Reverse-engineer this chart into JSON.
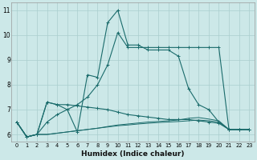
{
  "xlabel": "Humidex (Indice chaleur)",
  "xlim": [
    -0.5,
    23.5
  ],
  "ylim": [
    5.7,
    11.3
  ],
  "yticks": [
    6,
    7,
    8,
    9,
    10,
    11
  ],
  "xticks": [
    0,
    1,
    2,
    3,
    4,
    5,
    6,
    7,
    8,
    9,
    10,
    11,
    12,
    13,
    14,
    15,
    16,
    17,
    18,
    19,
    20,
    21,
    22,
    23
  ],
  "bg_color": "#cce8e8",
  "grid_color": "#aacece",
  "line_color": "#1a6b6b",
  "line1": [
    6.5,
    5.9,
    6.0,
    7.3,
    7.2,
    7.0,
    6.1,
    8.4,
    8.3,
    10.5,
    11.0,
    9.6,
    9.6,
    9.4,
    9.4,
    9.4,
    9.15,
    7.85,
    7.2,
    7.0,
    6.5,
    6.2,
    6.2,
    6.2
  ],
  "line2": [
    6.5,
    5.9,
    6.0,
    6.5,
    6.8,
    7.0,
    7.2,
    7.5,
    8.0,
    8.8,
    10.1,
    9.5,
    9.5,
    9.5,
    9.5,
    9.5,
    9.5,
    9.5,
    9.5,
    9.5,
    9.5,
    6.2,
    6.2,
    6.2
  ],
  "line3": [
    6.5,
    5.9,
    6.0,
    7.3,
    7.2,
    7.2,
    7.15,
    7.1,
    7.05,
    7.0,
    6.9,
    6.8,
    6.75,
    6.7,
    6.65,
    6.6,
    6.6,
    6.6,
    6.55,
    6.5,
    6.45,
    6.2,
    6.2,
    6.2
  ],
  "line4": [
    6.5,
    5.9,
    6.0,
    6.0,
    6.05,
    6.1,
    6.15,
    6.2,
    6.25,
    6.3,
    6.35,
    6.38,
    6.42,
    6.45,
    6.48,
    6.5,
    6.52,
    6.55,
    6.58,
    6.55,
    6.5,
    6.2,
    6.2,
    6.2
  ],
  "line5": [
    6.5,
    5.9,
    6.0,
    6.0,
    6.05,
    6.1,
    6.15,
    6.2,
    6.25,
    6.32,
    6.38,
    6.42,
    6.46,
    6.5,
    6.52,
    6.55,
    6.58,
    6.65,
    6.68,
    6.62,
    6.55,
    6.2,
    6.2,
    6.2
  ]
}
